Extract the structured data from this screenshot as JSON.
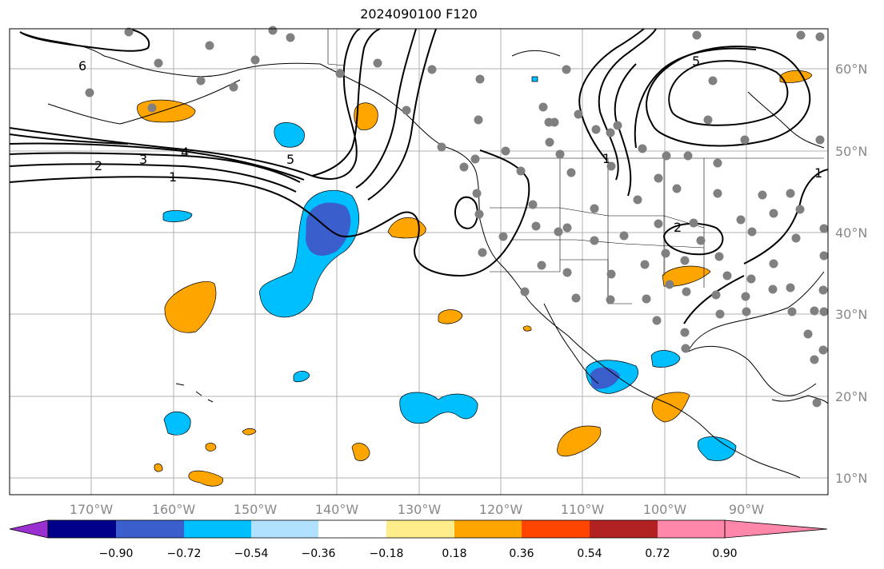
{
  "title": "2024090100 F120",
  "map": {
    "lon_labels": [
      "170°W",
      "160°W",
      "150°W",
      "140°W",
      "130°W",
      "120°W",
      "110°W",
      "100°W",
      "90°W"
    ],
    "lat_labels": [
      "60°N",
      "50°N",
      "40°N",
      "30°N",
      "20°N",
      "10°N"
    ],
    "contour_labels": [
      "6",
      "2",
      "3",
      "4",
      "5",
      "1",
      "1",
      "1",
      "5",
      "2"
    ],
    "colors": {
      "contour": "#000000",
      "station": "#808080",
      "grid": "#b0b0b0",
      "coast": "#000000"
    }
  },
  "colorbar": {
    "colors": [
      "#9b30d0",
      "#00008b",
      "#3a5fcd",
      "#00bfff",
      "#b0e2ff",
      "#ffffff",
      "#ffec8b",
      "#ffa500",
      "#ff4500",
      "#b22222",
      "#ff88aa"
    ],
    "tick_labels": [
      "−0.90",
      "−0.72",
      "−0.54",
      "−0.36",
      "−0.18",
      "0.18",
      "0.36",
      "0.54",
      "0.72",
      "0.90"
    ]
  }
}
